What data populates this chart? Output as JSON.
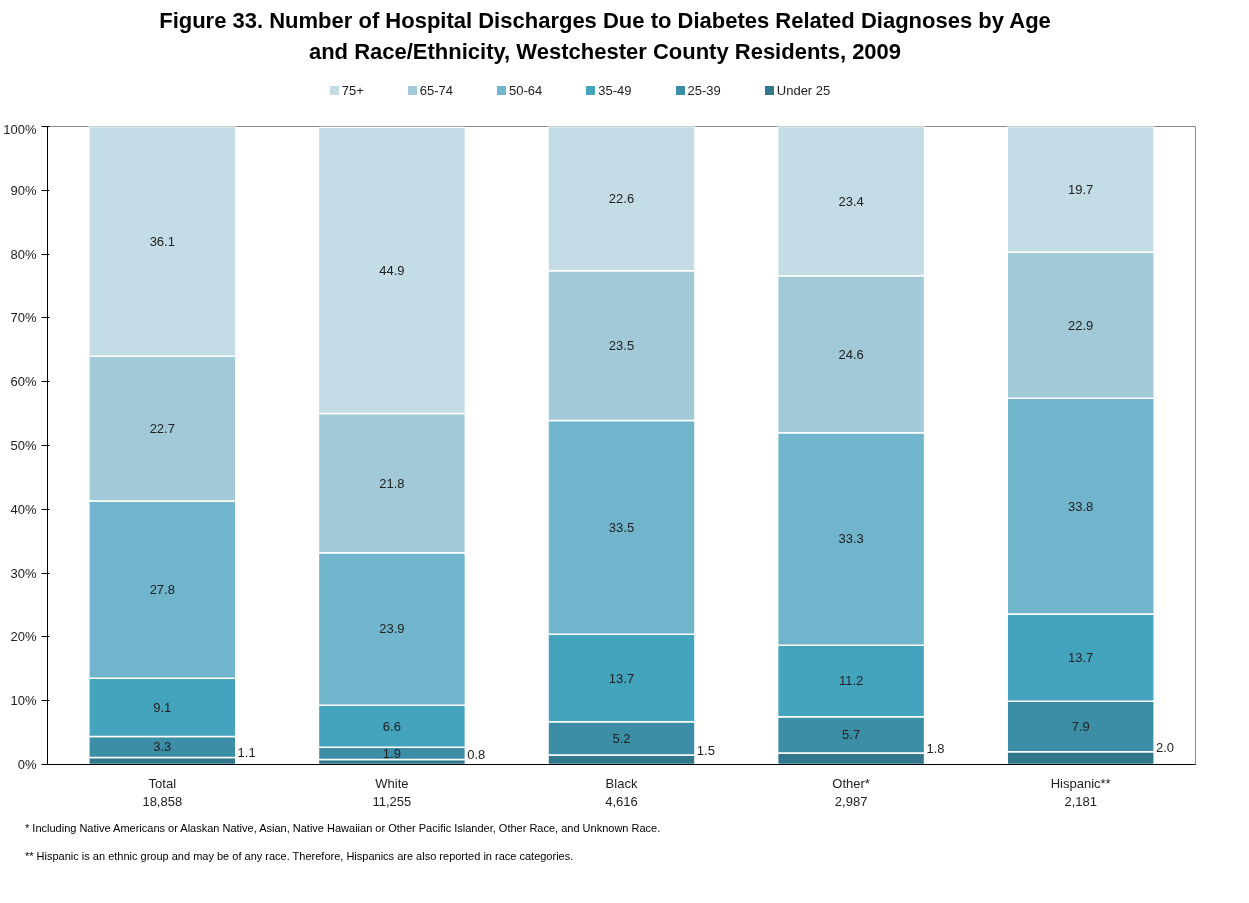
{
  "chart_data": {
    "type": "bar",
    "stacked": true,
    "title": "Figure 33.  Number of Hospital Discharges Due to Diabetes Related Diagnoses by Age and Race/Ethnicity, Westchester County Residents, 2009",
    "categories": [
      "Total\n18,858",
      "White\n11,255",
      "Black\n4,616",
      "Other*\n2,987",
      "Hispanic**\n2,181"
    ],
    "series": [
      {
        "name": "Under 25",
        "color": "#31788c",
        "values": [
          1.1,
          0.8,
          1.5,
          1.8,
          2.0
        ],
        "value_labels": [
          "1.1",
          "0.8",
          "1.5",
          "1.8",
          "2.0"
        ]
      },
      {
        "name": "25-39",
        "color": "#3b8ea6",
        "values": [
          3.3,
          1.9,
          5.2,
          5.7,
          7.9
        ]
      },
      {
        "name": "35-49",
        "color": "#44a3bd",
        "values": [
          9.1,
          6.6,
          13.7,
          11.2,
          13.7
        ]
      },
      {
        "name": "50-64",
        "color": "#71b5cc",
        "values": [
          27.8,
          23.9,
          33.5,
          33.3,
          33.8
        ]
      },
      {
        "name": "65-74",
        "color": "#a2c9d8",
        "values": [
          22.7,
          21.8,
          23.5,
          24.6,
          22.9
        ]
      },
      {
        "name": "75+",
        "color": "#c3dce5",
        "values": [
          36.1,
          44.9,
          22.6,
          23.4,
          19.7
        ]
      }
    ],
    "ylim": [
      0,
      100
    ],
    "yticks": [
      {
        "value": 0,
        "label": "0%"
      },
      {
        "value": 10,
        "label": "10%"
      },
      {
        "value": 20,
        "label": "20%"
      },
      {
        "value": 30,
        "label": "30%"
      },
      {
        "value": 40,
        "label": "40%"
      },
      {
        "value": 50,
        "label": "50%"
      },
      {
        "value": 60,
        "label": "60%"
      },
      {
        "value": 70,
        "label": "70%"
      },
      {
        "value": 80,
        "label": "80%"
      },
      {
        "value": 90,
        "label": "90%"
      },
      {
        "value": 100,
        "label": "100%"
      }
    ],
    "grid": false,
    "legend": "top",
    "data_labels": true,
    "annotations": [
      "* Including Native Americans or Alaskan Native, Asian, Native Hawaiian or Other Pacific Islander, Other Race, and Unknown Race.",
      "** Hispanic is an ethnic group and may be of any race.  Therefore, Hispanics are also reported in race categories."
    ]
  }
}
